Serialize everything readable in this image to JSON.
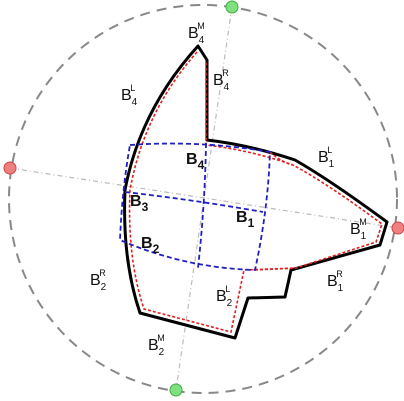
{
  "labels": [
    {
      "base": "B",
      "sub": "4",
      "sup": "M"
    },
    {
      "base": "B",
      "sub": "4",
      "sup": "R"
    },
    {
      "base": "B",
      "sub": "4",
      "sup": "L"
    },
    {
      "base": "B",
      "sub": "1",
      "sup": "L"
    },
    {
      "base": "B",
      "sub": "4",
      "bold": true
    },
    {
      "base": "B",
      "sub": "3",
      "bold": true
    },
    {
      "base": "B",
      "sub": "1",
      "bold": true
    },
    {
      "base": "B",
      "sub": "2",
      "bold": true
    },
    {
      "base": "B",
      "sub": "1",
      "sup": "M"
    },
    {
      "base": "B",
      "sub": "2",
      "sup": "R"
    },
    {
      "base": "B",
      "sub": "2",
      "sup": "L"
    },
    {
      "base": "B",
      "sub": "1",
      "sup": "R"
    },
    {
      "base": "B",
      "sub": "2",
      "sup": "M"
    }
  ]
}
